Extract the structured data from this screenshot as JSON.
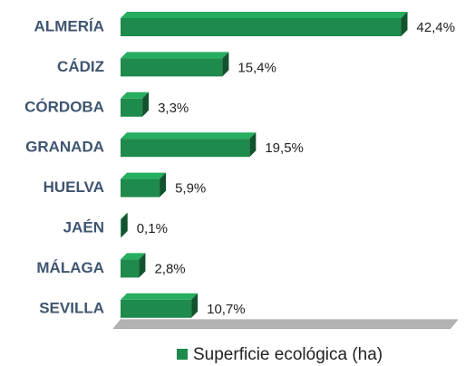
{
  "chart_data": {
    "type": "bar3d_horizontal",
    "categories": [
      "ALMERÍA",
      "CÁDIZ",
      "CÓRDOBA",
      "GRANADA",
      "HUELVA",
      "JAÉN",
      "MÁLAGA",
      "SEVILLA"
    ],
    "series": [
      {
        "name": "Superficie ecológica (ha)",
        "color": "#1e8a4c",
        "values": [
          42.4,
          15.4,
          3.3,
          19.5,
          5.9,
          0.1,
          2.8,
          10.7
        ],
        "value_labels": [
          "42,4%",
          "15,4%",
          "3,3%",
          "19,5%",
          "5,9%",
          "0,1%",
          "2,8%",
          "10,7%"
        ]
      }
    ],
    "xlim": [
      0,
      50
    ],
    "legend": "bottom"
  }
}
